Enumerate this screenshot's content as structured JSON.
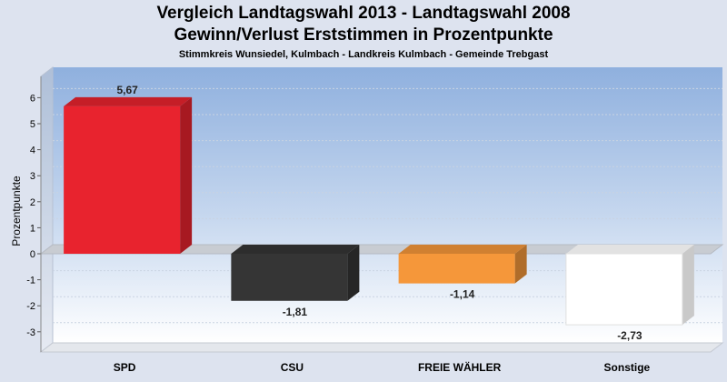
{
  "chart_data": {
    "type": "bar",
    "title": "Vergleich Landtagswahl 2013 - Landtagswahl 2008",
    "subtitle": "Gewinn/Verlust Erststimmen in Prozentpunkte",
    "subsubtitle": "Stimmkreis Wunsiedel, Kulmbach - Landkreis Kulmbach - Gemeinde Trebgast",
    "xlabel": "",
    "ylabel": "Prozentpunkte",
    "ylim": [
      -3.5,
      6.8
    ],
    "yticks": [
      -3,
      -2,
      -1,
      0,
      1,
      2,
      3,
      4,
      5,
      6
    ],
    "grid": true,
    "categories": [
      "SPD",
      "CSU",
      "FREIE WÄHLER",
      "Sonstige"
    ],
    "values": [
      5.67,
      -1.81,
      -1.14,
      -2.73
    ],
    "value_labels": [
      "5,67",
      "-1,81",
      "-1,14",
      "-2,73"
    ],
    "colors": [
      "#e8232e",
      "#353535",
      "#f5973a",
      "#ffffff"
    ]
  }
}
